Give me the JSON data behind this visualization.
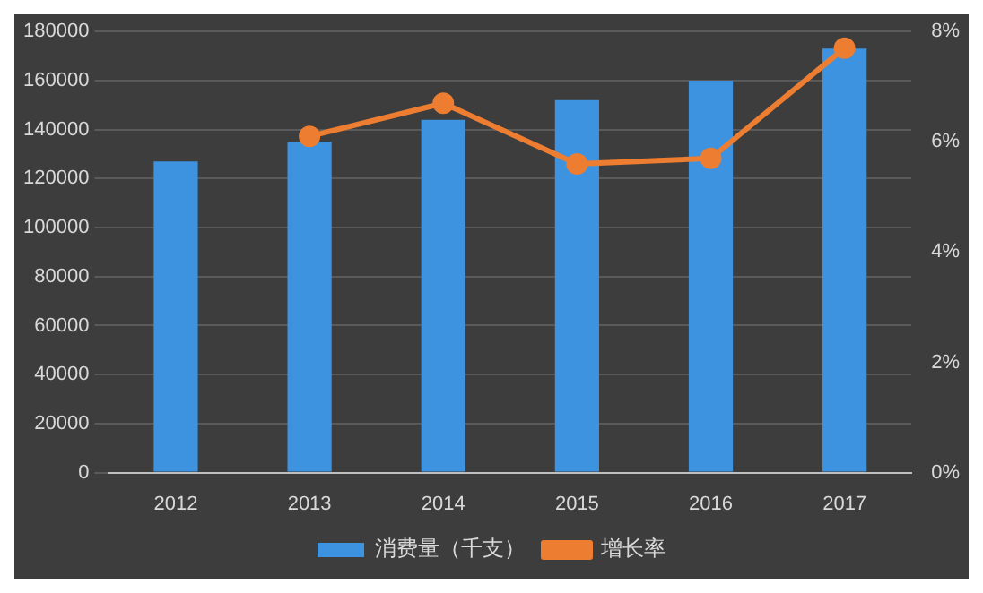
{
  "chart_data": {
    "type": "bar",
    "categories": [
      "2012",
      "2013",
      "2014",
      "2015",
      "2016",
      "2017"
    ],
    "series": [
      {
        "name": "消费量（千支）",
        "color": "#3e93e0",
        "values": [
          127000,
          135000,
          144000,
          152000,
          160000,
          173000
        ]
      },
      {
        "name": "增长率",
        "type": "line",
        "axis": "y2",
        "color": "#ed7d31",
        "values": [
          null,
          6.1,
          6.7,
          5.6,
          5.7,
          7.7
        ]
      }
    ],
    "ylim": [
      0,
      180000
    ],
    "yticks": [
      0,
      20000,
      40000,
      60000,
      80000,
      100000,
      120000,
      140000,
      160000,
      180000
    ],
    "y2lim": [
      0,
      8
    ],
    "y2ticks": [
      {
        "value": 0,
        "label": "0%"
      },
      {
        "value": 2,
        "label": "2%"
      },
      {
        "value": 4,
        "label": "4%"
      },
      {
        "value": 6,
        "label": "6%"
      },
      {
        "value": 8,
        "label": "8%"
      }
    ],
    "grid": "y",
    "legend": "bottom",
    "marker": "circle"
  }
}
